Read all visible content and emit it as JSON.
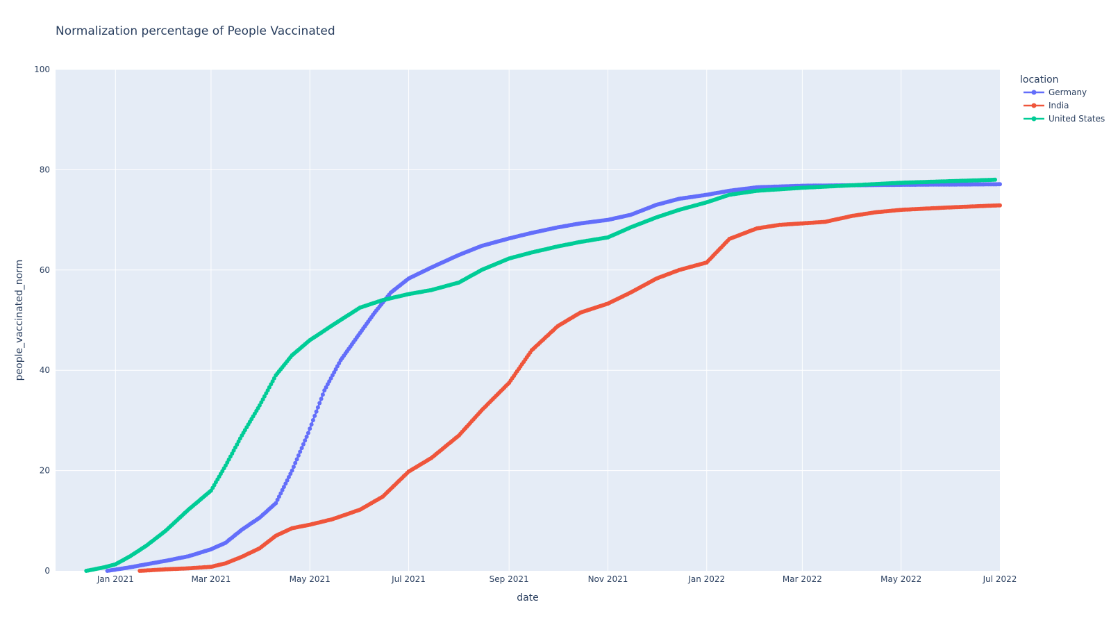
{
  "chart_data": {
    "type": "line",
    "title": "Normalization percentage of People Vaccinated",
    "xlabel": "date",
    "ylabel": "people_vaccinated_norm",
    "x_axis_type": "date",
    "xlim": [
      "2020-11-25",
      "2022-07-01"
    ],
    "ylim": [
      0,
      100
    ],
    "xticks": [
      {
        "value": "2021-01-01",
        "label": "Jan 2021"
      },
      {
        "value": "2021-03-01",
        "label": "Mar 2021"
      },
      {
        "value": "2021-05-01",
        "label": "May 2021"
      },
      {
        "value": "2021-07-01",
        "label": "Jul 2021"
      },
      {
        "value": "2021-09-01",
        "label": "Sep 2021"
      },
      {
        "value": "2021-11-01",
        "label": "Nov 2021"
      },
      {
        "value": "2022-01-01",
        "label": "Jan 2022"
      },
      {
        "value": "2022-03-01",
        "label": "Mar 2022"
      },
      {
        "value": "2022-05-01",
        "label": "May 2022"
      },
      {
        "value": "2022-07-01",
        "label": "Jul 2022"
      }
    ],
    "yticks": [
      0,
      20,
      40,
      60,
      80,
      100
    ],
    "grid": true,
    "mode": "lines+markers",
    "legend": {
      "title": "location",
      "position": "right"
    },
    "series": [
      {
        "name": "Germany",
        "color": "#636efa",
        "points": [
          [
            "2020-12-27",
            0
          ],
          [
            "2021-01-10",
            0.7
          ],
          [
            "2021-01-20",
            1.3
          ],
          [
            "2021-02-01",
            2.0
          ],
          [
            "2021-02-15",
            2.9
          ],
          [
            "2021-03-01",
            4.3
          ],
          [
            "2021-03-10",
            5.6
          ],
          [
            "2021-03-20",
            8.2
          ],
          [
            "2021-03-31",
            10.6
          ],
          [
            "2021-04-10",
            13.5
          ],
          [
            "2021-04-20",
            20.0
          ],
          [
            "2021-04-30",
            27.5
          ],
          [
            "2021-05-10",
            36.0
          ],
          [
            "2021-05-20",
            42.0
          ],
          [
            "2021-05-31",
            47.0
          ],
          [
            "2021-06-10",
            51.5
          ],
          [
            "2021-06-20",
            55.5
          ],
          [
            "2021-07-01",
            58.3
          ],
          [
            "2021-07-15",
            60.5
          ],
          [
            "2021-08-01",
            63.0
          ],
          [
            "2021-08-15",
            64.8
          ],
          [
            "2021-09-01",
            66.3
          ],
          [
            "2021-09-15",
            67.4
          ],
          [
            "2021-10-01",
            68.5
          ],
          [
            "2021-10-15",
            69.3
          ],
          [
            "2021-11-01",
            70.0
          ],
          [
            "2021-11-15",
            71.0
          ],
          [
            "2021-12-01",
            73.0
          ],
          [
            "2021-12-15",
            74.2
          ],
          [
            "2022-01-01",
            75.0
          ],
          [
            "2022-01-15",
            75.8
          ],
          [
            "2022-02-01",
            76.5
          ],
          [
            "2022-03-01",
            76.8
          ],
          [
            "2022-04-01",
            76.9
          ],
          [
            "2022-05-01",
            77.0
          ],
          [
            "2022-07-01",
            77.1
          ]
        ]
      },
      {
        "name": "India",
        "color": "#ef553b",
        "points": [
          [
            "2021-01-16",
            0
          ],
          [
            "2021-02-01",
            0.3
          ],
          [
            "2021-02-15",
            0.5
          ],
          [
            "2021-03-01",
            0.8
          ],
          [
            "2021-03-10",
            1.5
          ],
          [
            "2021-03-20",
            2.8
          ],
          [
            "2021-03-31",
            4.5
          ],
          [
            "2021-04-10",
            7.0
          ],
          [
            "2021-04-20",
            8.5
          ],
          [
            "2021-05-01",
            9.2
          ],
          [
            "2021-05-15",
            10.3
          ],
          [
            "2021-06-01",
            12.2
          ],
          [
            "2021-06-15",
            14.8
          ],
          [
            "2021-07-01",
            19.8
          ],
          [
            "2021-07-15",
            22.5
          ],
          [
            "2021-08-01",
            27.0
          ],
          [
            "2021-08-15",
            32.0
          ],
          [
            "2021-09-01",
            37.5
          ],
          [
            "2021-09-15",
            44.0
          ],
          [
            "2021-10-01",
            48.8
          ],
          [
            "2021-10-15",
            51.5
          ],
          [
            "2021-11-01",
            53.3
          ],
          [
            "2021-11-15",
            55.5
          ],
          [
            "2021-12-01",
            58.3
          ],
          [
            "2021-12-15",
            60.0
          ],
          [
            "2022-01-01",
            61.5
          ],
          [
            "2022-01-15",
            66.2
          ],
          [
            "2022-02-01",
            68.3
          ],
          [
            "2022-02-15",
            69.0
          ],
          [
            "2022-03-01",
            69.3
          ],
          [
            "2022-03-15",
            69.6
          ],
          [
            "2022-04-01",
            70.8
          ],
          [
            "2022-04-15",
            71.5
          ],
          [
            "2022-05-01",
            72.0
          ],
          [
            "2022-06-01",
            72.5
          ],
          [
            "2022-07-01",
            72.9
          ]
        ]
      },
      {
        "name": "United States",
        "color": "#00cc96",
        "points": [
          [
            "2020-12-14",
            0
          ],
          [
            "2020-12-25",
            0.7
          ],
          [
            "2021-01-01",
            1.3
          ],
          [
            "2021-01-10",
            2.9
          ],
          [
            "2021-01-20",
            5.0
          ],
          [
            "2021-02-01",
            8.0
          ],
          [
            "2021-02-15",
            12.2
          ],
          [
            "2021-03-01",
            16.0
          ],
          [
            "2021-03-10",
            21.0
          ],
          [
            "2021-03-20",
            27.0
          ],
          [
            "2021-03-31",
            33.0
          ],
          [
            "2021-04-10",
            39.0
          ],
          [
            "2021-04-20",
            43.0
          ],
          [
            "2021-05-01",
            46.0
          ],
          [
            "2021-05-15",
            49.0
          ],
          [
            "2021-06-01",
            52.5
          ],
          [
            "2021-06-15",
            54.0
          ],
          [
            "2021-07-01",
            55.2
          ],
          [
            "2021-07-15",
            56.0
          ],
          [
            "2021-08-01",
            57.5
          ],
          [
            "2021-08-15",
            60.0
          ],
          [
            "2021-09-01",
            62.3
          ],
          [
            "2021-09-15",
            63.5
          ],
          [
            "2021-10-01",
            64.7
          ],
          [
            "2021-10-15",
            65.6
          ],
          [
            "2021-11-01",
            66.5
          ],
          [
            "2021-11-15",
            68.5
          ],
          [
            "2021-12-01",
            70.5
          ],
          [
            "2021-12-15",
            72.0
          ],
          [
            "2022-01-01",
            73.5
          ],
          [
            "2022-01-15",
            75.0
          ],
          [
            "2022-02-01",
            75.8
          ],
          [
            "2022-03-01",
            76.4
          ],
          [
            "2022-04-01",
            76.9
          ],
          [
            "2022-05-01",
            77.4
          ],
          [
            "2022-06-28",
            78.0
          ]
        ]
      }
    ]
  }
}
